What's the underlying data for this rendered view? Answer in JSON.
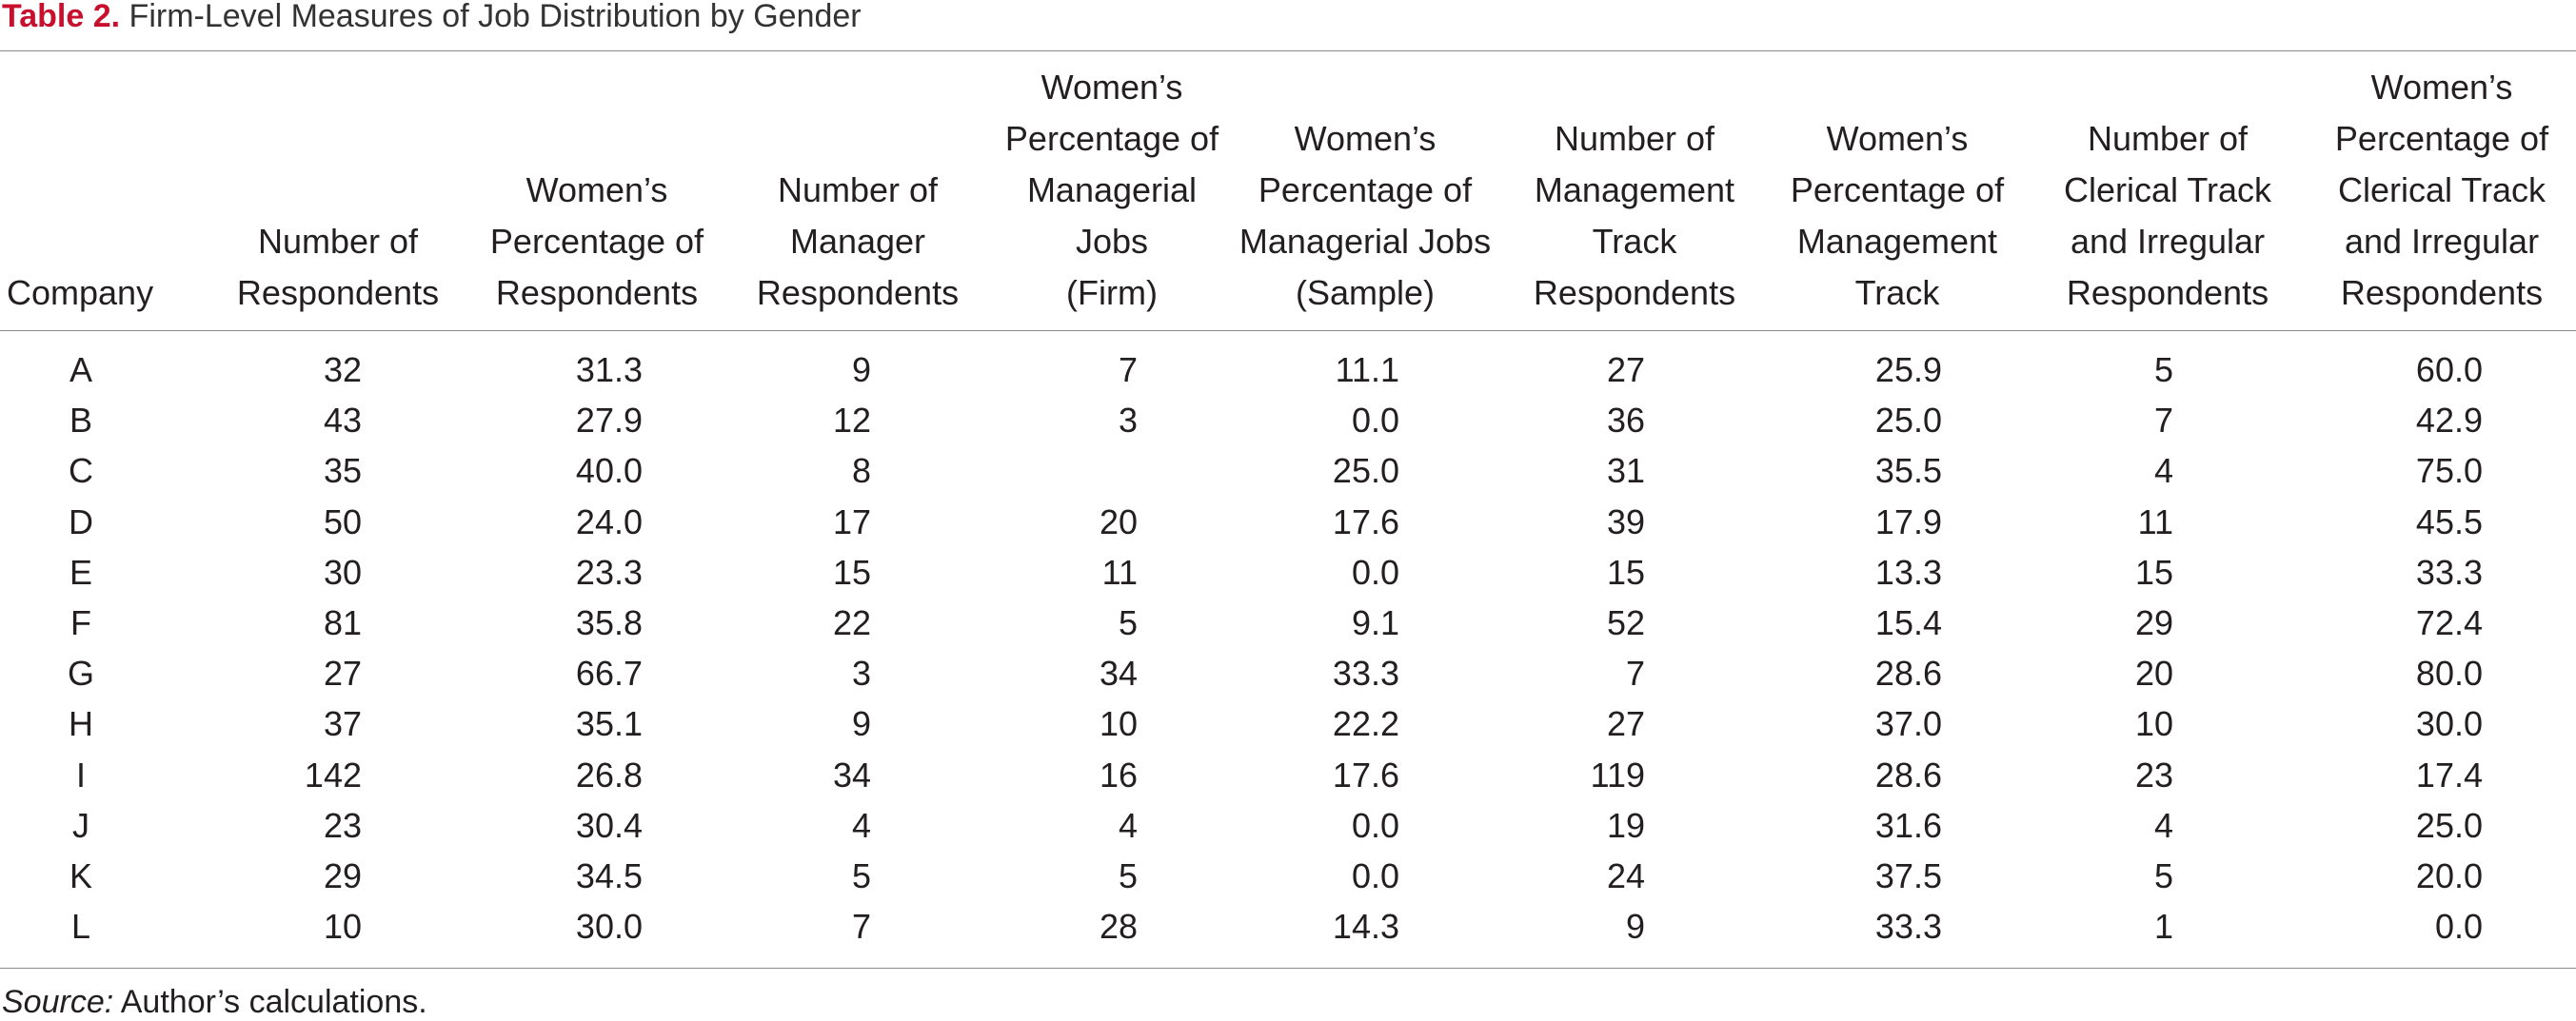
{
  "title": {
    "label": "Table 2.",
    "text": "Firm-Level Measures of Job Distribution by Gender"
  },
  "columns": [
    {
      "lines": [
        "Company"
      ]
    },
    {
      "lines": [
        "Number of",
        "Respondents"
      ]
    },
    {
      "lines": [
        "Women’s",
        "Percentage of",
        "Respondents"
      ]
    },
    {
      "lines": [
        "Number of",
        "Manager",
        "Respondents"
      ]
    },
    {
      "lines": [
        "Women’s",
        "Percentage of",
        "Managerial",
        "Jobs",
        "(Firm)"
      ]
    },
    {
      "lines": [
        "Women’s",
        "Percentage of",
        "Managerial Jobs",
        "(Sample)"
      ]
    },
    {
      "lines": [
        "Number of",
        "Management",
        "Track",
        "Respondents"
      ]
    },
    {
      "lines": [
        "Women’s",
        "Percentage of",
        "Management",
        "Track"
      ]
    },
    {
      "lines": [
        "Number of",
        "Clerical Track",
        "and Irregular",
        "Respondents"
      ]
    },
    {
      "lines": [
        "Women’s",
        "Percentage of",
        "Clerical Track",
        "and Irregular",
        "Respondents"
      ]
    }
  ],
  "rows": [
    [
      "A",
      "32",
      "31.3",
      "9",
      "7",
      "11.1",
      "27",
      "25.9",
      "5",
      "60.0"
    ],
    [
      "B",
      "43",
      "27.9",
      "12",
      "3",
      "0.0",
      "36",
      "25.0",
      "7",
      "42.9"
    ],
    [
      "C",
      "35",
      "40.0",
      "8",
      "",
      "25.0",
      "31",
      "35.5",
      "4",
      "75.0"
    ],
    [
      "D",
      "50",
      "24.0",
      "17",
      "20",
      "17.6",
      "39",
      "17.9",
      "11",
      "45.5"
    ],
    [
      "E",
      "30",
      "23.3",
      "15",
      "11",
      "0.0",
      "15",
      "13.3",
      "15",
      "33.3"
    ],
    [
      "F",
      "81",
      "35.8",
      "22",
      "5",
      "9.1",
      "52",
      "15.4",
      "29",
      "72.4"
    ],
    [
      "G",
      "27",
      "66.7",
      "3",
      "34",
      "33.3",
      "7",
      "28.6",
      "20",
      "80.0"
    ],
    [
      "H",
      "37",
      "35.1",
      "9",
      "10",
      "22.2",
      "27",
      "37.0",
      "10",
      "30.0"
    ],
    [
      "I",
      "142",
      "26.8",
      "34",
      "16",
      "17.6",
      "119",
      "28.6",
      "23",
      "17.4"
    ],
    [
      "J",
      "23",
      "30.4",
      "4",
      "4",
      "0.0",
      "19",
      "31.6",
      "4",
      "25.0"
    ],
    [
      "K",
      "29",
      "34.5",
      "5",
      "5",
      "0.0",
      "24",
      "37.5",
      "5",
      "20.0"
    ],
    [
      "L",
      "10",
      "30.0",
      "7",
      "28",
      "14.3",
      "9",
      "33.3",
      "1",
      "0.0"
    ]
  ],
  "source": {
    "label": "Source:",
    "text": " Author’s calculations."
  },
  "colors": {
    "title_label": "#c8102e",
    "rule": "#8a8a8a",
    "text": "#231f20"
  }
}
